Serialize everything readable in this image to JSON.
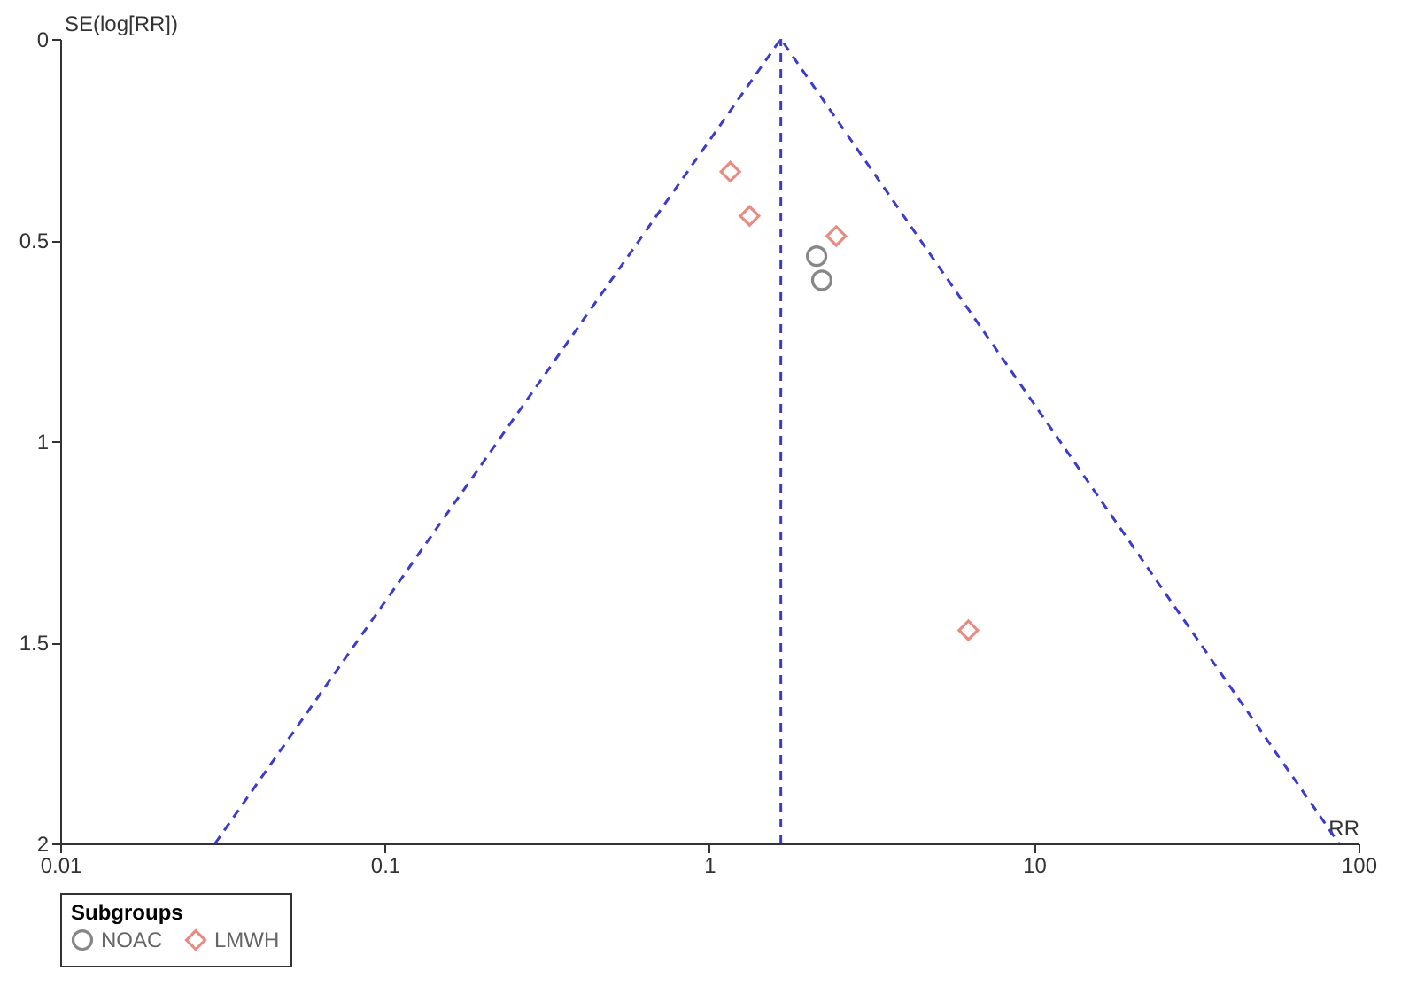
{
  "chart_data": {
    "type": "scatter",
    "xlabel": "RR",
    "ylabel": "SE(log[RR])",
    "legend_title": "Subgroups",
    "legend": "bottom",
    "log": "x",
    "grid": false,
    "xlim": [
      0.01,
      100
    ],
    "xticks": [
      0.01,
      0.1,
      1,
      10,
      100
    ],
    "ylim": [
      2,
      0
    ],
    "yticks": [
      0,
      0.5,
      1,
      1.5,
      2
    ],
    "series": [
      {
        "name": "NOAC",
        "marker": "circle",
        "color": "#555555",
        "x": [
          2.14,
          2.22
        ],
        "values": [
          0.54,
          0.6
        ]
      },
      {
        "name": "LMWH",
        "marker": "diamond",
        "color": "#e05a4f",
        "x": [
          1.16,
          1.33,
          2.46,
          6.28
        ],
        "values": [
          0.33,
          0.44,
          0.49,
          1.47
        ]
      },
      {
        "type": "line",
        "color": "#3b3bcc",
        "line_style": "dashed",
        "x": [
          0.03,
          1.66,
          87
        ],
        "values": [
          2,
          0,
          2
        ]
      }
    ],
    "ref_lines": [
      {
        "axis": "x",
        "value": 1.66,
        "color": "#3b3bcc",
        "line_style": "dashed"
      }
    ]
  }
}
